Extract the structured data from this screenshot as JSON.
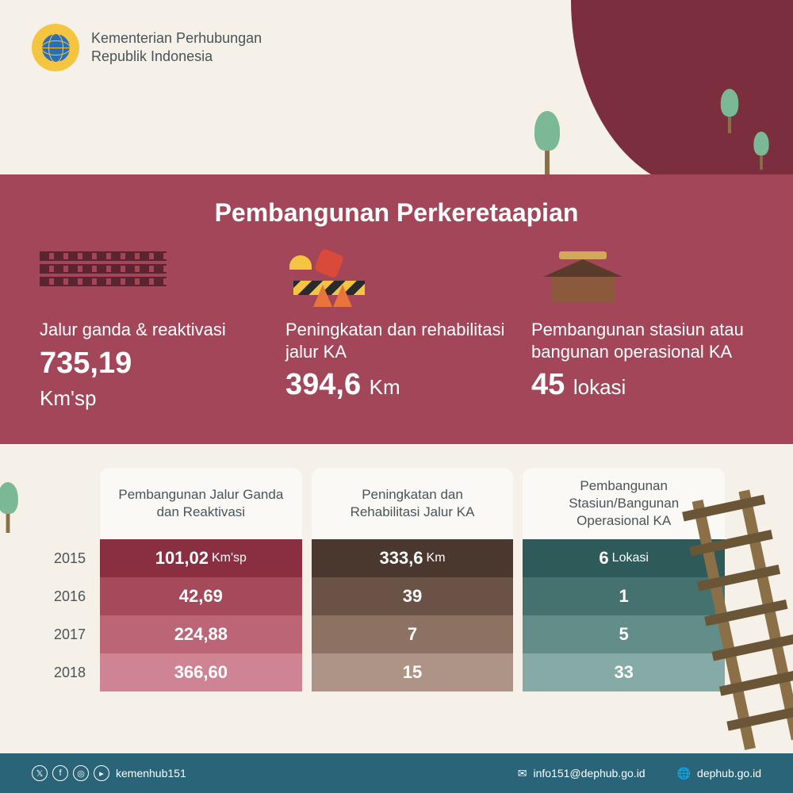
{
  "header": {
    "org_line1": "Kementerian Perhubungan",
    "org_line2": "Republik Indonesia",
    "logo_bg": "#f5c542",
    "logo_globe": "#2a6fb5"
  },
  "banner": {
    "bg_color": "#a34659",
    "title": "Pembangunan Perkeretaapian",
    "stats": [
      {
        "label": "Jalur ganda & reaktivasi",
        "value": "735,19",
        "unit": "Km'sp"
      },
      {
        "label": "Peningkatan dan rehabilitasi jalur KA",
        "value": "394,6",
        "unit": "Km"
      },
      {
        "label": "Pembangunan stasiun atau bangunan operasional KA",
        "value": "45",
        "unit": "lokasi"
      }
    ]
  },
  "table": {
    "years": [
      "2015",
      "2016",
      "2017",
      "2018"
    ],
    "columns": [
      {
        "header": "Pembangunan Jalur Ganda dan Reaktivasi",
        "unit": "Km'sp",
        "cells": [
          "101,02",
          "42,69",
          "224,88",
          "366,60"
        ],
        "row_colors": [
          "#8a2f42",
          "#a6495b",
          "#bb6576",
          "#cf8493"
        ]
      },
      {
        "header": "Peningkatan dan Rehabilitasi Jalur KA",
        "unit": "Km",
        "cells": [
          "333,6",
          "39",
          "7",
          "15"
        ],
        "row_colors": [
          "#4a372e",
          "#6a5246",
          "#8d7264",
          "#ad9486"
        ]
      },
      {
        "header": "Pembangunan Stasiun/Bangunan Operasional KA",
        "unit": "Lokasi",
        "cells": [
          "6",
          "1",
          "5",
          "33"
        ],
        "row_colors": [
          "#2e5a5a",
          "#45726f",
          "#628d89",
          "#86aaa6"
        ]
      }
    ]
  },
  "footer": {
    "bg_color": "#2a6478",
    "handle": "kemenhub151",
    "email": "info151@dephub.go.id",
    "website": "dephub.go.id"
  },
  "colors": {
    "page_bg": "#f5f1e8",
    "maroon_shape": "#7a2e3e",
    "tree_green": "#7ab896",
    "text_gray": "#4a5458"
  }
}
